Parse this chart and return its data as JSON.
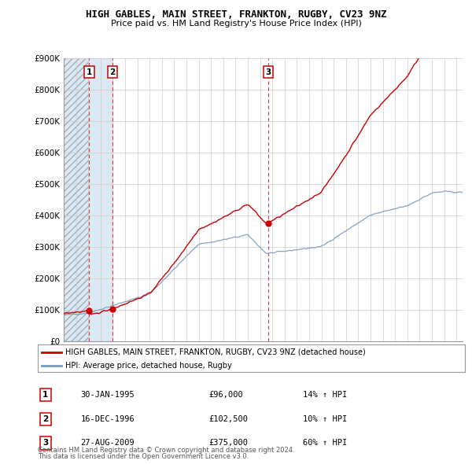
{
  "title": "HIGH GABLES, MAIN STREET, FRANKTON, RUGBY, CV23 9NZ",
  "subtitle": "Price paid vs. HM Land Registry's House Price Index (HPI)",
  "ylabel_ticks": [
    "£0",
    "£100K",
    "£200K",
    "£300K",
    "£400K",
    "£500K",
    "£600K",
    "£700K",
    "£800K",
    "£900K"
  ],
  "ytick_values": [
    0,
    100000,
    200000,
    300000,
    400000,
    500000,
    600000,
    700000,
    800000,
    900000
  ],
  "ylim": [
    0,
    900000
  ],
  "xlim_start": 1993.0,
  "xlim_end": 2025.5,
  "transactions": [
    {
      "num": 1,
      "date_label": "30-JAN-1995",
      "date_decimal": 1995.08,
      "price": 96000,
      "pct": "14%",
      "dir": "↑"
    },
    {
      "num": 2,
      "date_label": "16-DEC-1996",
      "date_decimal": 1996.96,
      "price": 102500,
      "pct": "10%",
      "dir": "↑"
    },
    {
      "num": 3,
      "date_label": "27-AUG-2009",
      "date_decimal": 2009.65,
      "price": 375000,
      "pct": "60%",
      "dir": "↑"
    }
  ],
  "legend_line1": "HIGH GABLES, MAIN STREET, FRANKTON, RUGBY, CV23 9NZ (detached house)",
  "legend_line2": "HPI: Average price, detached house, Rugby",
  "footnote1": "Contains HM Land Registry data © Crown copyright and database right 2024.",
  "footnote2": "This data is licensed under the Open Government Licence v3.0.",
  "red_line_color": "#cc0000",
  "blue_line_color": "#7799bb",
  "hatch_color": "#dde8f0",
  "hatch_edge_color": "#aabbcc",
  "grid_color": "#cccccc",
  "bg_color": "#ffffff",
  "table_row_label_price": [
    "£96,000",
    "£102,500",
    "£375,000"
  ]
}
